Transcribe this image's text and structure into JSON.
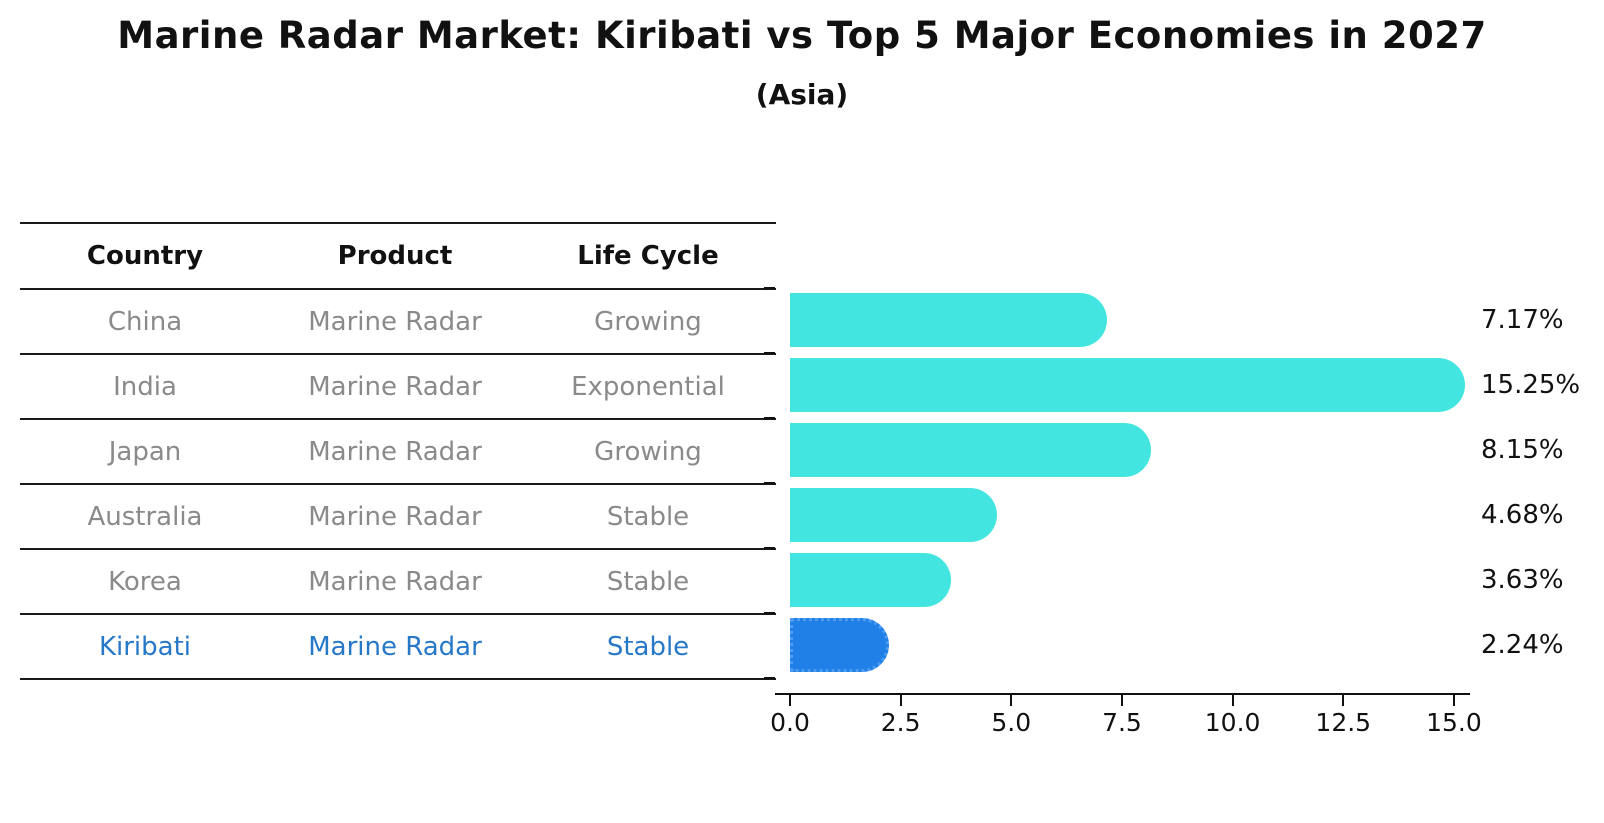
{
  "title": "Marine Radar Market: Kiribati vs Top 5 Major Economies in 2027",
  "subtitle": "(Asia)",
  "table": {
    "headers": [
      "Country",
      "Product",
      "Life Cycle"
    ],
    "rows": [
      {
        "country": "China",
        "product": "Marine Radar",
        "life_cycle": "Growing",
        "highlight": false
      },
      {
        "country": "India",
        "product": "Marine Radar",
        "life_cycle": "Exponential",
        "highlight": false
      },
      {
        "country": "Japan",
        "product": "Marine Radar",
        "life_cycle": "Growing",
        "highlight": false
      },
      {
        "country": "Australia",
        "product": "Marine Radar",
        "life_cycle": "Stable",
        "highlight": false
      },
      {
        "country": "Korea",
        "product": "Marine Radar",
        "life_cycle": "Stable",
        "highlight": false
      },
      {
        "country": "Kiribati",
        "product": "Marine Radar",
        "life_cycle": "Stable",
        "highlight": true
      }
    ]
  },
  "chart_data": {
    "type": "bar",
    "orientation": "horizontal",
    "title": "Marine Radar Market: Kiribati vs Top 5 Major Economies in 2027",
    "subtitle": "(Asia)",
    "categories": [
      "China",
      "India",
      "Japan",
      "Australia",
      "Korea",
      "Kiribati"
    ],
    "values": [
      7.17,
      15.25,
      8.15,
      4.68,
      3.63,
      2.24
    ],
    "value_labels": [
      "7.17%",
      "15.25%",
      "8.15%",
      "4.68%",
      "3.63%",
      "2.24%"
    ],
    "xlim": [
      0,
      15.25
    ],
    "x_ticks": [
      0.0,
      2.5,
      5.0,
      7.5,
      10.0,
      12.5,
      15.0
    ],
    "x_tick_labels": [
      "0.0",
      "2.5",
      "5.0",
      "7.5",
      "10.0",
      "12.5",
      "15.0"
    ],
    "grid": false,
    "legend": false,
    "bar_color": "#42e5df",
    "highlight_index": 5,
    "highlight_bar_color": "#2080e8",
    "highlight_bar_border": "dotted",
    "highlight_text_color": "#2878c8",
    "xlabel": "",
    "ylabel": ""
  }
}
